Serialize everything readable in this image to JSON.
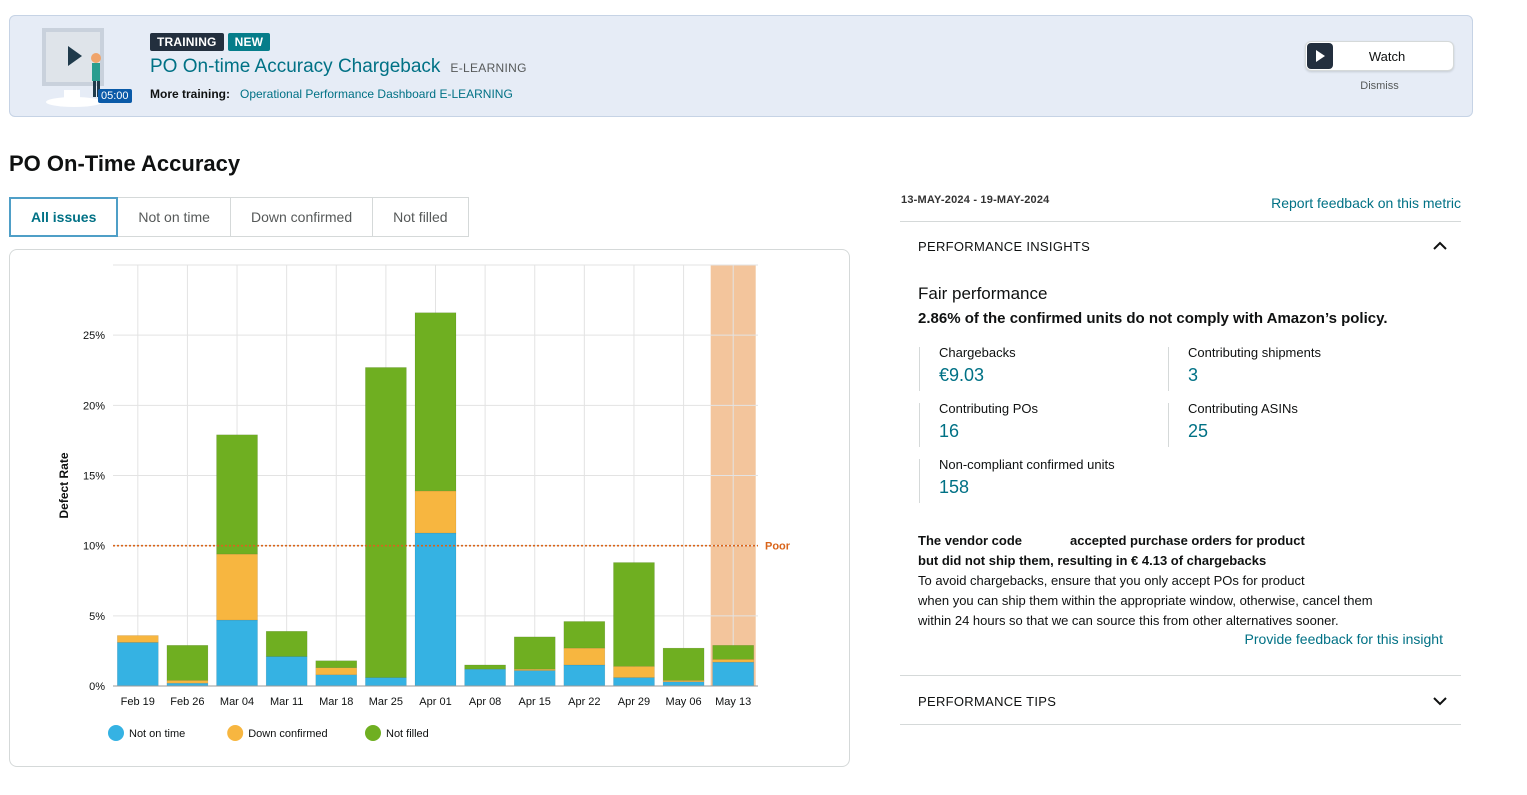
{
  "banner": {
    "duration": "05:00",
    "badges": {
      "training": "TRAINING",
      "new": "NEW"
    },
    "course_title": "PO On-time Accuracy Chargeback",
    "course_type": "E-LEARNING",
    "more_label": "More training:",
    "more_link": "Operational Performance Dashboard",
    "more_type": "E-LEARNING",
    "watch_label": "Watch",
    "dismiss_label": "Dismiss"
  },
  "page": {
    "title": "PO On-Time Accuracy"
  },
  "tabs": [
    {
      "label": "All issues",
      "active": true
    },
    {
      "label": "Not on time",
      "active": false
    },
    {
      "label": "Down confirmed",
      "active": false
    },
    {
      "label": "Not filled",
      "active": false
    }
  ],
  "chart_data": {
    "type": "bar",
    "stacked": true,
    "ylabel": "Defect Rate",
    "ylim": [
      0,
      30
    ],
    "yticks": [
      "0%",
      "5%",
      "10%",
      "15%",
      "20%",
      "25%"
    ],
    "categories": [
      "Feb 19",
      "Feb 26",
      "Mar 04",
      "Mar 11",
      "Mar 18",
      "Mar 25",
      "Apr 01",
      "Apr 08",
      "Apr 15",
      "Apr 22",
      "Apr 29",
      "May 06",
      "May 13"
    ],
    "series": [
      {
        "name": "Not on time",
        "color": "#35b2e3",
        "values": [
          3.1,
          0.2,
          4.7,
          2.1,
          0.8,
          0.6,
          10.9,
          1.2,
          1.1,
          1.5,
          0.6,
          0.3,
          1.7
        ]
      },
      {
        "name": "Down confirmed",
        "color": "#f7b640",
        "values": [
          0.5,
          0.2,
          4.7,
          0.0,
          0.5,
          0.0,
          3.0,
          0.0,
          0.1,
          1.2,
          0.8,
          0.1,
          0.2
        ]
      },
      {
        "name": "Not filled",
        "color": "#6faf21",
        "values": [
          0.0,
          2.5,
          8.5,
          1.8,
          0.5,
          22.1,
          12.7,
          0.3,
          2.3,
          1.9,
          7.4,
          2.3,
          1.0
        ]
      }
    ],
    "threshold": {
      "value": 10,
      "label": "Poor",
      "color": "#d9641a"
    },
    "highlight_category": "May 13",
    "highlight_color": "#f3c59c",
    "grid": true,
    "legend_position": "bottom-left"
  },
  "insights": {
    "date_range": "13-MAY-2024 - 19-MAY-2024",
    "report_link": "Report feedback on this metric",
    "section_title": "PERFORMANCE INSIGHTS",
    "performance_level": "Fair performance",
    "summary": "2.86% of the confirmed units do not comply with Amazon’s policy.",
    "metrics": {
      "chargebacks": {
        "label": "Chargebacks",
        "value": "€9.03"
      },
      "shipments": {
        "label": "Contributing shipments",
        "value": "3"
      },
      "pos": {
        "label": "Contributing POs",
        "value": "16"
      },
      "asins": {
        "label": "Contributing ASINs",
        "value": "25"
      },
      "units": {
        "label": "Non-compliant confirmed units",
        "value": "158"
      }
    },
    "detail_bold_1": "The vendor code",
    "detail_bold_2": "accepted purchase orders for product",
    "detail_bold_3": "but did not ship them, resulting in € 4.13 of chargebacks",
    "detail_line_1": "To avoid chargebacks, ensure that you only accept POs for product",
    "detail_line_2": "when you can ship them within the appropriate window, otherwise, cancel them",
    "detail_line_3": "within 24 hours so that we can source this from other alternatives sooner.",
    "feedback_link": "Provide feedback for this insight",
    "tips_title": "PERFORMANCE TIPS"
  }
}
